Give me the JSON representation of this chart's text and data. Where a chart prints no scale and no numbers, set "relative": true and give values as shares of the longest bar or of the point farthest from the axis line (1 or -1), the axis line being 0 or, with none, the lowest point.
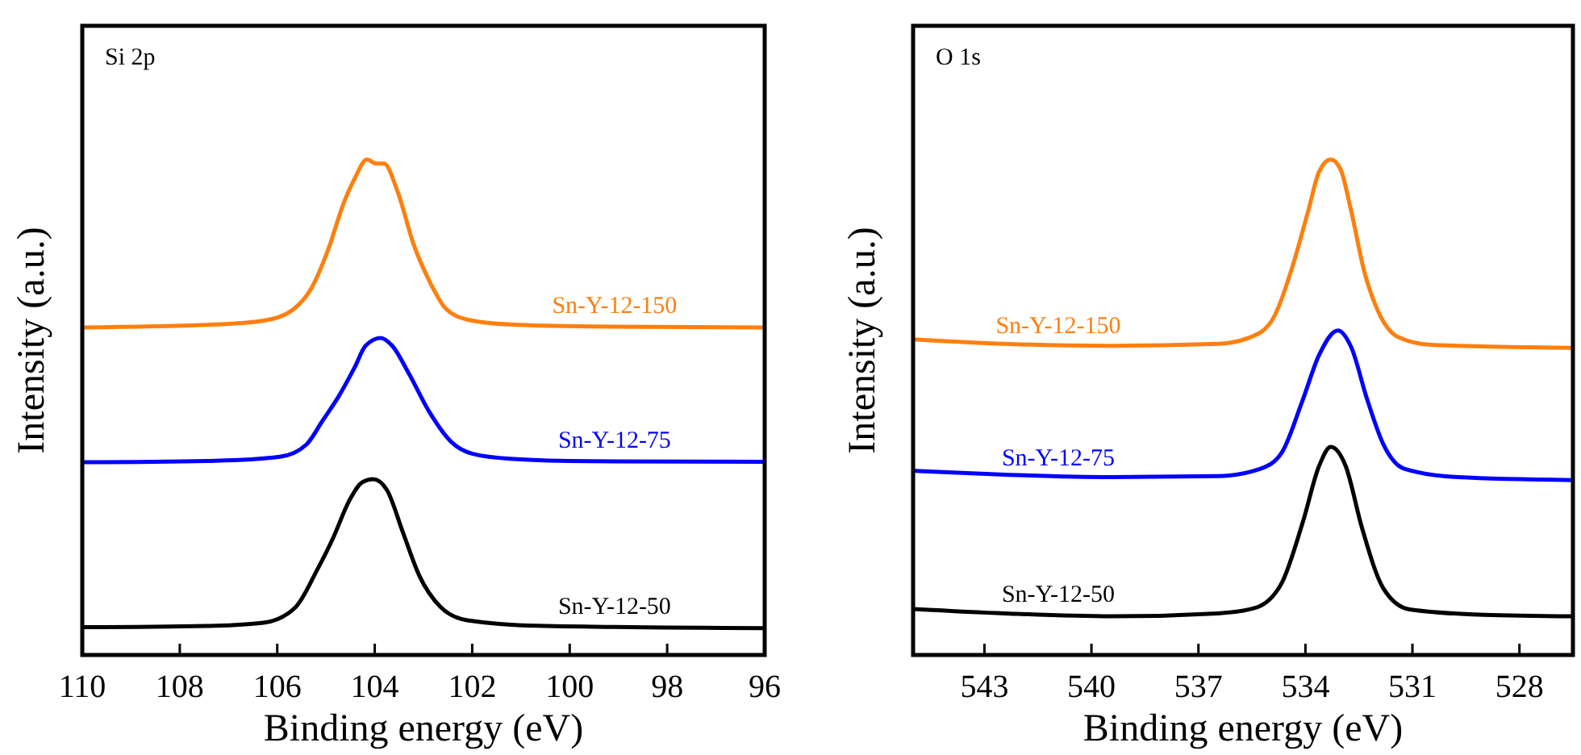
{
  "chart_data": [
    {
      "type": "line",
      "title": "Si 2p",
      "xlabel": "Binding energy (eV)",
      "ylabel": "Intensity (a.u.)",
      "relative": true,
      "xlim": [
        110,
        96
      ],
      "xticks": [
        110,
        108,
        106,
        104,
        102,
        100,
        98,
        96
      ],
      "tick_labels": "x",
      "line_style": "solid",
      "series": [
        {
          "name": "Sn-Y-12-150",
          "color": "#ff7f0e",
          "x": [
            110,
            107.27,
            106.28,
            105.68,
            105.29,
            104.96,
            104.63,
            104.41,
            104.16,
            103.97,
            103.81,
            103.53,
            103.2,
            102.87,
            102.54,
            102.1,
            101.22,
            99.57,
            96
          ],
          "values": [
            0.661,
            0.667,
            0.675,
            0.697,
            0.742,
            0.817,
            0.914,
            0.962,
            1,
            0.992,
            0.992,
            0.935,
            0.828,
            0.753,
            0.699,
            0.677,
            0.667,
            0.663,
            0.661
          ]
        },
        {
          "name": "Sn-Y-12-75",
          "color": "#0000ff",
          "x": [
            110,
            107.27,
            105.95,
            105.4,
            105.07,
            104.74,
            104.41,
            104.19,
            103.88,
            103.64,
            103.31,
            102.87,
            102.43,
            101.99,
            101.22,
            99.57,
            96
          ],
          "values": [
            0.389,
            0.392,
            0.4,
            0.425,
            0.473,
            0.522,
            0.581,
            0.624,
            0.64,
            0.624,
            0.57,
            0.489,
            0.43,
            0.406,
            0.396,
            0.391,
            0.39
          ]
        },
        {
          "name": "Sn-Y-12-50",
          "color": "#000000",
          "x": [
            110,
            107.27,
            106.28,
            105.62,
            105.18,
            104.85,
            104.52,
            104.25,
            104.03,
            103.75,
            103.42,
            103.09,
            102.65,
            102.1,
            100.67,
            96
          ],
          "values": [
            0.056,
            0.059,
            0.065,
            0.097,
            0.172,
            0.237,
            0.312,
            0.349,
            0.355,
            0.333,
            0.247,
            0.161,
            0.097,
            0.07,
            0.059,
            0.054
          ]
        }
      ]
    },
    {
      "type": "line",
      "title": "O 1s",
      "xlabel": "Binding energy (eV)",
      "ylabel": "Intensity (a.u.)",
      "relative": true,
      "xlim": [
        545,
        526.5
      ],
      "xticks": [
        543,
        540,
        537,
        534,
        531,
        528
      ],
      "tick_labels": "x",
      "line_style": "solid",
      "series": [
        {
          "name": "Sn-Y-12-150",
          "color": "#ff7f0e",
          "x": [
            545,
            542.43,
            539.44,
            536.46,
            535.56,
            534.96,
            534.36,
            533.92,
            533.62,
            533.29,
            533.02,
            532.72,
            532.35,
            531.97,
            531.38,
            530.48,
            526.5
          ],
          "values": [
            0.637,
            0.628,
            0.624,
            0.628,
            0.641,
            0.673,
            0.785,
            0.897,
            0.975,
            1,
            0.981,
            0.897,
            0.774,
            0.695,
            0.641,
            0.626,
            0.62
          ]
        },
        {
          "name": "Sn-Y-12-75",
          "color": "#0000ff",
          "x": [
            545,
            542.43,
            539.44,
            536.46,
            535.26,
            534.66,
            534.07,
            533.62,
            533.09,
            532.72,
            532.27,
            531.82,
            531.23,
            529.73,
            526.5
          ],
          "values": [
            0.372,
            0.364,
            0.359,
            0.361,
            0.376,
            0.409,
            0.516,
            0.605,
            0.655,
            0.622,
            0.516,
            0.426,
            0.376,
            0.359,
            0.353
          ]
        },
        {
          "name": "Sn-Y-12-50",
          "color": "#000000",
          "x": [
            545,
            542.43,
            539.44,
            536.46,
            535.41,
            534.66,
            534.07,
            533.62,
            533.29,
            532.87,
            532.42,
            531.82,
            531.08,
            528.99,
            526.5
          ],
          "values": [
            0.093,
            0.084,
            0.078,
            0.084,
            0.095,
            0.146,
            0.269,
            0.381,
            0.42,
            0.381,
            0.258,
            0.135,
            0.092,
            0.081,
            0.078
          ]
        }
      ]
    }
  ]
}
